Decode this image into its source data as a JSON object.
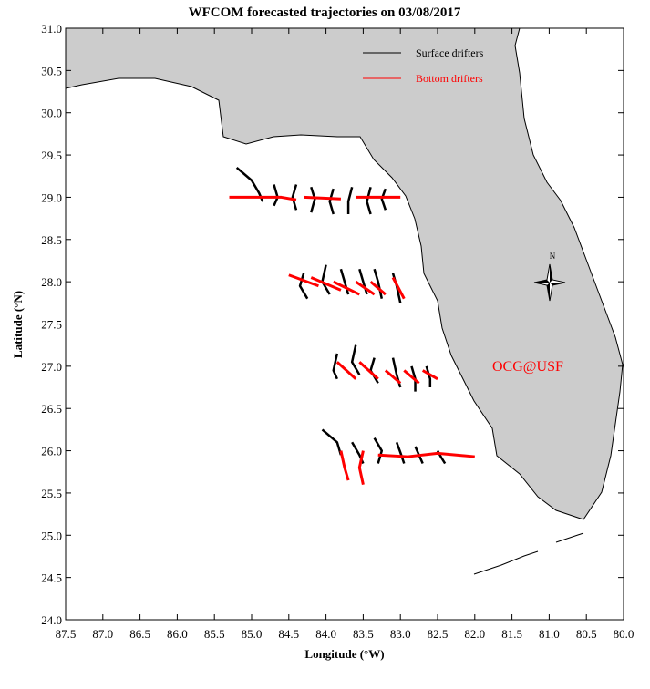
{
  "chart_data": {
    "type": "trajectory-map",
    "title": "WFCOM forecasted trajectories on 03/08/2017",
    "x_label": "Longitude (°W)",
    "y_label": "Latitude (°N)",
    "annotation": "OCG@USF",
    "compass_label": "N",
    "legend": "upper right",
    "xlim": [
      87.5,
      80.0
    ],
    "ylim": [
      24.0,
      31.0
    ],
    "xticks": [
      87.5,
      {
        "value": 87.0,
        "label": "87.0"
      },
      86.5,
      {
        "value": 86.0,
        "label": "86.0"
      },
      85.5,
      {
        "value": 85.0,
        "label": "85.0"
      },
      84.5,
      {
        "value": 84.0,
        "label": "84.0"
      },
      83.5,
      {
        "value": 83.0,
        "label": "83.0"
      },
      82.5,
      {
        "value": 82.0,
        "label": "82.0"
      },
      81.5,
      {
        "value": 81.0,
        "label": "81.0"
      },
      80.5,
      {
        "value": 80.0,
        "label": "80.0"
      }
    ],
    "yticks": [
      {
        "value": 24.0,
        "label": "24.0"
      },
      24.5,
      {
        "value": 25.0,
        "label": "25.0"
      },
      25.5,
      {
        "value": 26.0,
        "label": "26.0"
      },
      26.5,
      {
        "value": 27.0,
        "label": "27.0"
      },
      27.5,
      {
        "value": 28.0,
        "label": "28.0"
      },
      28.5,
      {
        "value": 29.0,
        "label": "29.0"
      },
      29.5,
      {
        "value": 30.0,
        "label": "30.0"
      },
      30.5,
      {
        "value": 31.0,
        "label": "31.0"
      }
    ],
    "series": [
      {
        "name": "Surface drifters",
        "color": "#000000",
        "tracks": [
          {
            "lon": [
              85.2,
              85.0,
              84.9,
              84.85
            ],
            "lat": [
              29.35,
              29.2,
              29.05,
              28.95
            ]
          },
          {
            "lon": [
              84.7,
              84.65,
              84.7
            ],
            "lat": [
              29.15,
              29.0,
              28.9
            ]
          },
          {
            "lon": [
              84.4,
              84.45,
              84.4
            ],
            "lat": [
              29.15,
              29.0,
              28.85
            ]
          },
          {
            "lon": [
              84.2,
              84.15,
              84.2
            ],
            "lat": [
              29.12,
              28.98,
              28.82
            ]
          },
          {
            "lon": [
              83.9,
              83.95,
              83.9
            ],
            "lat": [
              29.1,
              28.95,
              28.8
            ]
          },
          {
            "lon": [
              83.65,
              83.7,
              83.7
            ],
            "lat": [
              29.12,
              28.95,
              28.8
            ]
          },
          {
            "lon": [
              83.4,
              83.45,
              83.4
            ],
            "lat": [
              29.12,
              28.95,
              28.8
            ]
          },
          {
            "lon": [
              83.2,
              83.25,
              83.2
            ],
            "lat": [
              29.1,
              28.98,
              28.85
            ]
          },
          {
            "lon": [
              84.3,
              84.35,
              84.25
            ],
            "lat": [
              28.1,
              27.95,
              27.8
            ]
          },
          {
            "lon": [
              84.0,
              84.05,
              83.95
            ],
            "lat": [
              28.2,
              28.0,
              27.85
            ]
          },
          {
            "lon": [
              83.8,
              83.75,
              83.7
            ],
            "lat": [
              28.15,
              28.0,
              27.85
            ]
          },
          {
            "lon": [
              83.55,
              83.5,
              83.45
            ],
            "lat": [
              28.15,
              28.0,
              27.85
            ]
          },
          {
            "lon": [
              83.35,
              83.3,
              83.25
            ],
            "lat": [
              28.15,
              28.0,
              27.8
            ]
          },
          {
            "lon": [
              83.1,
              83.05,
              83.0
            ],
            "lat": [
              28.1,
              27.95,
              27.75
            ]
          },
          {
            "lon": [
              83.85,
              83.9,
              83.85
            ],
            "lat": [
              27.15,
              26.95,
              26.85
            ]
          },
          {
            "lon": [
              83.6,
              83.65,
              83.55
            ],
            "lat": [
              27.25,
              27.05,
              26.9
            ]
          },
          {
            "lon": [
              83.35,
              83.4,
              83.3
            ],
            "lat": [
              27.1,
              26.95,
              26.8
            ]
          },
          {
            "lon": [
              83.1,
              83.05,
              83.0
            ],
            "lat": [
              27.1,
              26.9,
              26.75
            ]
          },
          {
            "lon": [
              82.85,
              82.8,
              82.8
            ],
            "lat": [
              27.0,
              26.85,
              26.7
            ]
          },
          {
            "lon": [
              82.65,
              82.6,
              82.6
            ],
            "lat": [
              27.0,
              26.85,
              26.75
            ]
          },
          {
            "lon": [
              84.05,
              83.85,
              83.8
            ],
            "lat": [
              26.25,
              26.1,
              25.95
            ]
          },
          {
            "lon": [
              83.65,
              83.55,
              83.5
            ],
            "lat": [
              26.1,
              25.95,
              25.85
            ]
          },
          {
            "lon": [
              83.35,
              83.25,
              83.3
            ],
            "lat": [
              26.15,
              26.0,
              25.85
            ]
          },
          {
            "lon": [
              83.05,
              83.0,
              82.95
            ],
            "lat": [
              26.1,
              25.98,
              25.85
            ]
          },
          {
            "lon": [
              82.8,
              82.75,
              82.7
            ],
            "lat": [
              26.05,
              25.95,
              25.85
            ]
          },
          {
            "lon": [
              82.5,
              82.45,
              82.4
            ],
            "lat": [
              26.0,
              25.92,
              25.85
            ]
          }
        ]
      },
      {
        "name": "Bottom drifters",
        "color": "#ff0000",
        "tracks": [
          {
            "lon": [
              85.3,
              84.6,
              84.4
            ],
            "lat": [
              29.0,
              29.0,
              28.97
            ]
          },
          {
            "lon": [
              84.3,
              83.8
            ],
            "lat": [
              29.0,
              28.98
            ]
          },
          {
            "lon": [
              83.6,
              83.0
            ],
            "lat": [
              29.0,
              29.0
            ]
          },
          {
            "lon": [
              84.5,
              84.1
            ],
            "lat": [
              28.08,
              27.95
            ]
          },
          {
            "lon": [
              84.2,
              83.8
            ],
            "lat": [
              28.05,
              27.9
            ]
          },
          {
            "lon": [
              83.9,
              83.55
            ],
            "lat": [
              28.0,
              27.85
            ]
          },
          {
            "lon": [
              83.6,
              83.35
            ],
            "lat": [
              28.0,
              27.85
            ]
          },
          {
            "lon": [
              83.4,
              83.2
            ],
            "lat": [
              28.0,
              27.85
            ]
          },
          {
            "lon": [
              83.1,
              82.95
            ],
            "lat": [
              28.05,
              27.8
            ]
          },
          {
            "lon": [
              83.85,
              83.6
            ],
            "lat": [
              27.05,
              26.85
            ]
          },
          {
            "lon": [
              83.55,
              83.3
            ],
            "lat": [
              27.05,
              26.85
            ]
          },
          {
            "lon": [
              83.2,
              83.0
            ],
            "lat": [
              26.95,
              26.8
            ]
          },
          {
            "lon": [
              82.95,
              82.75
            ],
            "lat": [
              26.95,
              26.8
            ]
          },
          {
            "lon": [
              82.7,
              82.5
            ],
            "lat": [
              26.95,
              26.85
            ]
          },
          {
            "lon": [
              83.8,
              83.75,
              83.7
            ],
            "lat": [
              26.0,
              25.8,
              25.65
            ]
          },
          {
            "lon": [
              83.5,
              83.55,
              83.5
            ],
            "lat": [
              26.0,
              25.8,
              25.6
            ]
          },
          {
            "lon": [
              83.3,
              82.9,
              82.5,
              82.0
            ],
            "lat": [
              25.95,
              25.93,
              25.97,
              25.93
            ]
          }
        ]
      }
    ]
  }
}
